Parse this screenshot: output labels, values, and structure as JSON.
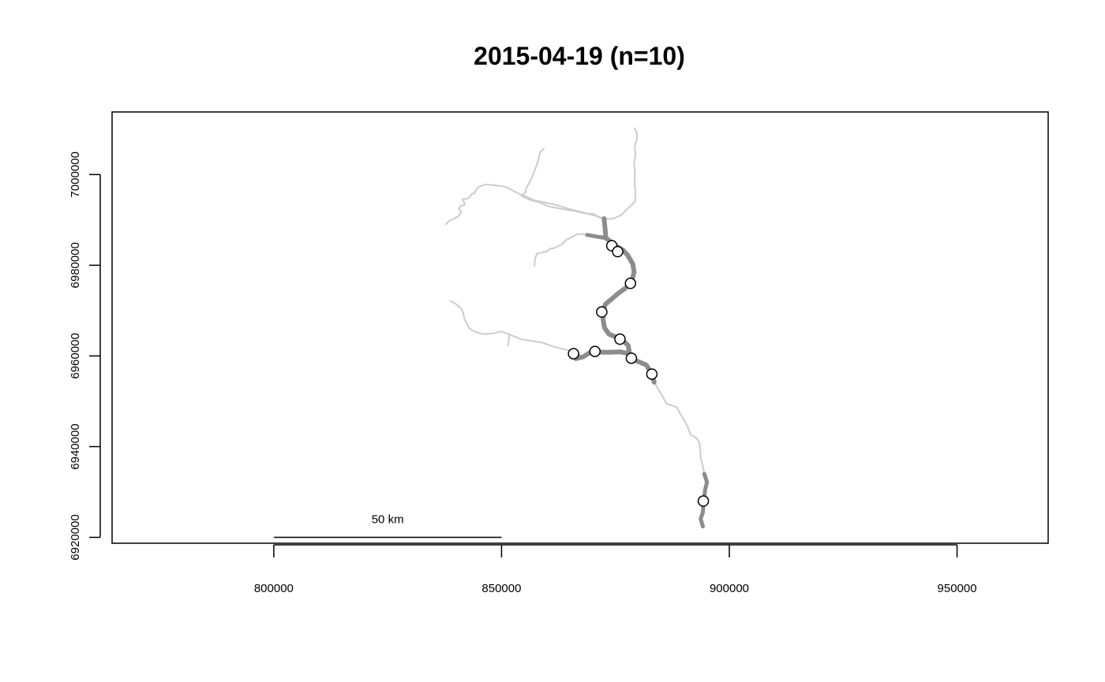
{
  "chart_data": {
    "type": "scatter",
    "title": "2015-04-19  (n=10)",
    "xlabel": "",
    "ylabel": "",
    "xlim": [
      764500,
      970000
    ],
    "ylim": [
      6918700,
      7013800
    ],
    "x_ticks": [
      800000,
      850000,
      900000,
      950000
    ],
    "y_ticks": [
      6920000,
      6940000,
      6960000,
      6980000,
      7000000
    ],
    "x_tick_labels": [
      "800000",
      "850000",
      "900000",
      "950000"
    ],
    "y_tick_labels": [
      "6920000",
      "6940000",
      "6960000",
      "6980000",
      "7000000"
    ],
    "grid": false,
    "scale_bar": {
      "label": "50 km",
      "x_start": 800000,
      "x_end": 850000,
      "y": 6920000
    },
    "point_style": {
      "fill": "#ffffff",
      "stroke": "#000000"
    },
    "points": [
      {
        "x": 874200,
        "y": 6984300
      },
      {
        "x": 875500,
        "y": 6983000
      },
      {
        "x": 878300,
        "y": 6976000
      },
      {
        "x": 872000,
        "y": 6969700
      },
      {
        "x": 876000,
        "y": 6963700
      },
      {
        "x": 865800,
        "y": 6960500
      },
      {
        "x": 870500,
        "y": 6961000
      },
      {
        "x": 878500,
        "y": 6959500
      },
      {
        "x": 883000,
        "y": 6956000
      },
      {
        "x": 894300,
        "y": 6928000
      }
    ],
    "river_segments": [
      {
        "name": "",
        "color": "#cccccc",
        "width": 2,
        "points": [
          [
            859300,
            7005700
          ],
          [
            858500,
            7005000
          ],
          [
            857800,
            7002300
          ],
          [
            857000,
            7000200
          ],
          [
            856500,
            6999000
          ],
          [
            856000,
            6998000
          ],
          [
            855400,
            6997000
          ],
          [
            855200,
            6996000
          ],
          [
            854400,
            6995300
          ],
          [
            856300,
            6994400
          ],
          [
            858200,
            6993900
          ],
          [
            860300,
            6993000
          ],
          [
            863300,
            6992400
          ],
          [
            866400,
            6991900
          ],
          [
            868500,
            6991400
          ],
          [
            870200,
            6991300
          ],
          [
            871500,
            6990500
          ],
          [
            872800,
            6990200
          ],
          [
            874600,
            6990300
          ],
          [
            876200,
            6991000
          ],
          [
            877900,
            6992700
          ],
          [
            879300,
            6994000
          ],
          [
            879400,
            6995900
          ],
          [
            879200,
            6998200
          ],
          [
            879300,
            7000500
          ],
          [
            879100,
            7002400
          ],
          [
            879400,
            7004500
          ],
          [
            879200,
            7006200
          ],
          [
            879700,
            7007800
          ],
          [
            879700,
            7009200
          ],
          [
            879200,
            7010200
          ]
        ]
      },
      {
        "name": "",
        "color": "#cccccc",
        "width": 2,
        "points": [
          [
            872500,
            6990300
          ],
          [
            871000,
            6990800
          ],
          [
            869500,
            6991200
          ],
          [
            867300,
            6991800
          ],
          [
            865300,
            6992300
          ],
          [
            863600,
            6992800
          ],
          [
            861200,
            6993500
          ],
          [
            858800,
            6994000
          ],
          [
            857300,
            6994300
          ],
          [
            855600,
            6995000
          ],
          [
            854000,
            6995700
          ],
          [
            852600,
            6996400
          ],
          [
            850800,
            6997300
          ],
          [
            849500,
            6997500
          ],
          [
            848000,
            6997700
          ],
          [
            846500,
            6997800
          ],
          [
            845400,
            6997500
          ],
          [
            844700,
            6997000
          ],
          [
            844300,
            6996400
          ],
          [
            844000,
            6995800
          ],
          [
            843600,
            6995800
          ],
          [
            843200,
            6995400
          ],
          [
            843000,
            6994900
          ],
          [
            842200,
            6994600
          ],
          [
            841400,
            6994500
          ],
          [
            841800,
            6993900
          ],
          [
            842000,
            6993400
          ],
          [
            841000,
            6993100
          ],
          [
            840600,
            6992400
          ],
          [
            841200,
            6991800
          ],
          [
            840500,
            6990800
          ],
          [
            839500,
            6990200
          ],
          [
            838500,
            6989800
          ],
          [
            837800,
            6989000
          ]
        ]
      },
      {
        "name": "",
        "color": "#cccccc",
        "width": 2,
        "points": [
          [
            871800,
            6986500
          ],
          [
            870300,
            6986400
          ],
          [
            868800,
            6986700
          ],
          [
            867600,
            6986900
          ],
          [
            866500,
            6986800
          ],
          [
            865300,
            6986100
          ],
          [
            864200,
            6985600
          ],
          [
            863200,
            6984600
          ],
          [
            861600,
            6983800
          ],
          [
            860800,
            6983700
          ],
          [
            860000,
            6983100
          ],
          [
            858900,
            6982800
          ],
          [
            857800,
            6982600
          ],
          [
            857400,
            6981600
          ],
          [
            857300,
            6980700
          ],
          [
            857200,
            6979900
          ]
        ]
      },
      {
        "name": "",
        "color": "#cccccc",
        "width": 2,
        "points": [
          [
            866700,
            6960200
          ],
          [
            865000,
            6961200
          ],
          [
            863000,
            6961600
          ],
          [
            861000,
            6962200
          ],
          [
            858800,
            6963000
          ],
          [
            856500,
            6963300
          ],
          [
            854300,
            6963700
          ],
          [
            852000,
            6964600
          ],
          [
            850000,
            6965400
          ],
          [
            848300,
            6965000
          ],
          [
            846000,
            6964800
          ],
          [
            844300,
            6965300
          ],
          [
            843000,
            6966000
          ],
          [
            842400,
            6967100
          ],
          [
            841800,
            6968300
          ],
          [
            841600,
            6969400
          ],
          [
            841200,
            6970400
          ],
          [
            840500,
            6971000
          ],
          [
            839800,
            6971600
          ],
          [
            838800,
            6972100
          ]
        ]
      },
      {
        "name": "",
        "color": "#cccccc",
        "width": 2,
        "points": [
          [
            851800,
            6964800
          ],
          [
            851600,
            6963600
          ],
          [
            851400,
            6962300
          ]
        ]
      },
      {
        "name": "",
        "color": "#cccccc",
        "width": 2,
        "points": [
          [
            883500,
            6954200
          ],
          [
            885000,
            6951700
          ],
          [
            886200,
            6949500
          ],
          [
            888400,
            6948700
          ],
          [
            889700,
            6946500
          ],
          [
            890800,
            6944500
          ],
          [
            891500,
            6942600
          ],
          [
            892800,
            6941900
          ],
          [
            893400,
            6941000
          ],
          [
            893600,
            6939500
          ],
          [
            893700,
            6937600
          ],
          [
            894200,
            6935700
          ],
          [
            894500,
            6934000
          ]
        ]
      },
      {
        "name": "",
        "color": "#8c8c8c",
        "width": 6,
        "points": [
          [
            872500,
            6990300
          ],
          [
            872700,
            6988300
          ],
          [
            872900,
            6986000
          ],
          [
            873900,
            6985200
          ],
          [
            875200,
            6984200
          ],
          [
            876700,
            6983300
          ],
          [
            877700,
            6982200
          ],
          [
            878800,
            6980300
          ],
          [
            879100,
            6978500
          ],
          [
            878500,
            6976000
          ],
          [
            877000,
            6974800
          ],
          [
            875500,
            6973700
          ],
          [
            874000,
            6972400
          ],
          [
            872800,
            6971400
          ],
          [
            872200,
            6969600
          ],
          [
            872300,
            6968000
          ],
          [
            872600,
            6966200
          ],
          [
            873600,
            6964800
          ],
          [
            875100,
            6964200
          ],
          [
            876500,
            6963500
          ],
          [
            877800,
            6962300
          ],
          [
            878100,
            6960500
          ],
          [
            878600,
            6959300
          ],
          [
            880400,
            6958600
          ],
          [
            881800,
            6958000
          ],
          [
            882800,
            6956300
          ],
          [
            883500,
            6954200
          ]
        ]
      },
      {
        "name": "",
        "color": "#8c8c8c",
        "width": 6,
        "points": [
          [
            878100,
            6960500
          ],
          [
            876100,
            6960900
          ],
          [
            873900,
            6960800
          ],
          [
            872000,
            6960800
          ],
          [
            870300,
            6961200
          ],
          [
            869000,
            6960500
          ],
          [
            867900,
            6959800
          ],
          [
            866300,
            6959400
          ],
          [
            865500,
            6960200
          ],
          [
            866700,
            6960200
          ]
        ]
      },
      {
        "name": "",
        "color": "#8c8c8c",
        "width": 5,
        "points": [
          [
            872900,
            6986000
          ],
          [
            871000,
            6986300
          ],
          [
            868800,
            6986700
          ]
        ]
      },
      {
        "name": "",
        "color": "#8c8c8c",
        "width": 5,
        "points": [
          [
            894500,
            6934000
          ],
          [
            895100,
            6932200
          ],
          [
            894700,
            6930500
          ],
          [
            894500,
            6929000
          ],
          [
            894300,
            6927400
          ],
          [
            894200,
            6925500
          ],
          [
            893700,
            6924100
          ],
          [
            894200,
            6922400
          ]
        ]
      }
    ]
  }
}
